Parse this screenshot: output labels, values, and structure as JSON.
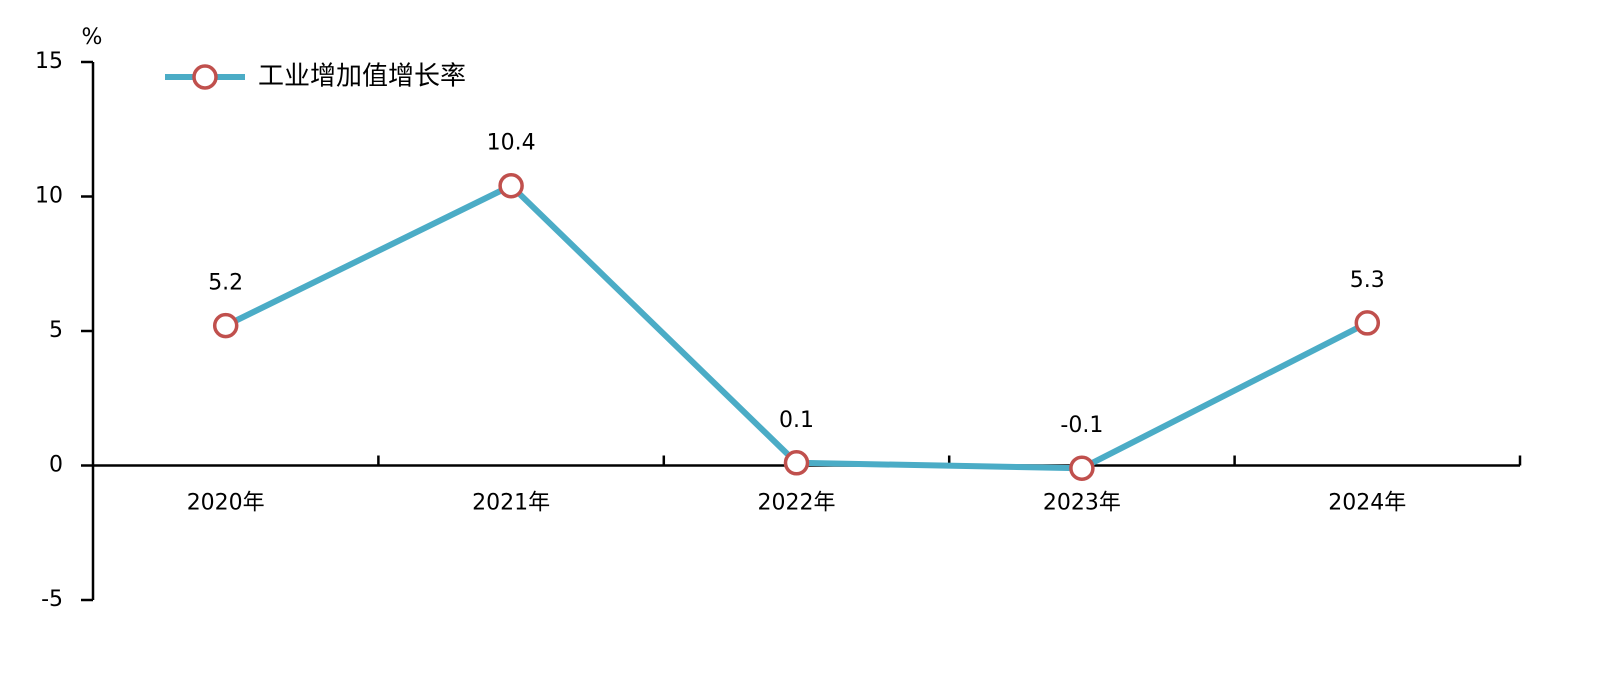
{
  "chart_data": {
    "type": "line",
    "y_label": "%",
    "categories": [
      "2020年",
      "2021年",
      "2022年",
      "2023年",
      "2024年"
    ],
    "series": [
      {
        "name": "工业增加值增长率",
        "color": "#4BACC6",
        "marker_color": "#C0504D",
        "values": [
          5.2,
          10.4,
          0.1,
          -0.1,
          5.3
        ]
      }
    ],
    "ylim": [
      -5,
      15
    ],
    "yticks": [
      -5,
      0,
      5,
      10,
      15
    ],
    "legend": "upper left",
    "data_labels": true
  }
}
